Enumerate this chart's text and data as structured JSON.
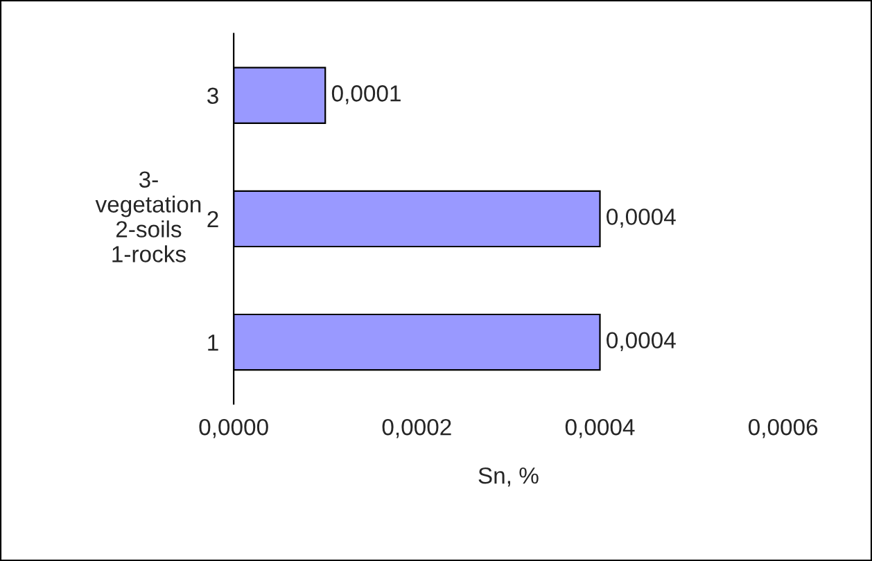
{
  "chart_data": {
    "type": "bar",
    "orientation": "horizontal",
    "categories": [
      "3",
      "2",
      "1"
    ],
    "values": [
      0.0001,
      0.0004,
      0.0004
    ],
    "value_labels": [
      "0,0001",
      "0,0004",
      "0,0004"
    ],
    "color": "#9999ff",
    "xlabel": "Sn, %",
    "ylabel": "3-\nvegetation\n2-soils\n1-rocks",
    "xlim": [
      0,
      0.0006
    ],
    "xticks": [
      {
        "value": 0,
        "label": "0,0000"
      },
      {
        "value": 0.0002,
        "label": "0,0002"
      },
      {
        "value": 0.0004,
        "label": "0,0004"
      },
      {
        "value": 0.0006,
        "label": "0,0006"
      }
    ],
    "grid": false,
    "legend": false
  }
}
